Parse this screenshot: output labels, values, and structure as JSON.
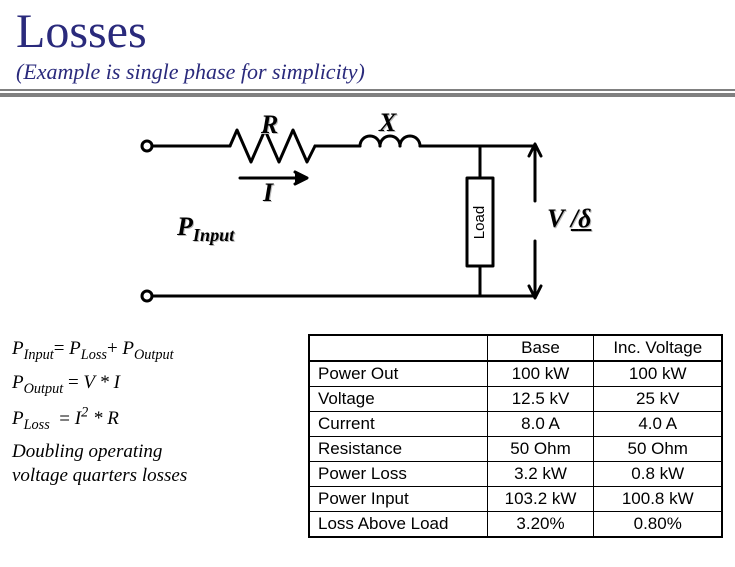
{
  "header": {
    "title": "Losses",
    "subtitle": "(Example is single phase for simplicity)",
    "title_color": "#2a2a7c",
    "title_fontsize": 48,
    "subtitle_fontsize": 22
  },
  "circuit": {
    "type": "schematic",
    "stroke_color": "#000000",
    "stroke_width": 3,
    "terminal_radius": 4,
    "labels": {
      "R": "R",
      "X": "X",
      "I": "I",
      "Pinput": "P",
      "Pinput_sub": "Input",
      "Load": "Load",
      "V": "V",
      "delta": "δ"
    },
    "label_fontsize": 26,
    "label_fontstyle": "bold italic",
    "label_font": "Times New Roman"
  },
  "equations": {
    "fontsize": 19,
    "font": "Georgia",
    "eq1_lhs_main": "P",
    "eq1_lhs_sub": "Input",
    "eq1_rhs1_main": "P",
    "eq1_rhs1_sub": "Loss",
    "eq1_rhs2_main": "P",
    "eq1_rhs2_sub": "Output",
    "eq2_lhs_main": "P",
    "eq2_lhs_sub": "Output",
    "eq2_rhs": "V * I",
    "eq3_lhs_main": "P",
    "eq3_lhs_sub": "Loss",
    "eq3_rhs_base": "I",
    "eq3_rhs_exp": "2",
    "eq3_rhs_tail": " * R",
    "note_line1": "Doubling operating",
    "note_line2": "voltage quarters losses"
  },
  "table": {
    "type": "table",
    "border_color": "#000000",
    "outer_border_width": 2,
    "inner_border_width": 1,
    "fontsize": 17,
    "columns": [
      "",
      "Base",
      "Inc. Voltage"
    ],
    "rows": [
      [
        "Power Out",
        "100 kW",
        "100 kW"
      ],
      [
        "Voltage",
        "12.5 kV",
        "25 kV"
      ],
      [
        "Current",
        "8.0 A",
        "4.0 A"
      ],
      [
        "Resistance",
        "50 Ohm",
        "50 Ohm"
      ],
      [
        "Power Loss",
        "3.2 kW",
        "0.8 kW"
      ],
      [
        "Power Input",
        "103.2 kW",
        "100.8 kW"
      ],
      [
        "Loss Above Load",
        "3.20%",
        "0.80%"
      ]
    ]
  }
}
